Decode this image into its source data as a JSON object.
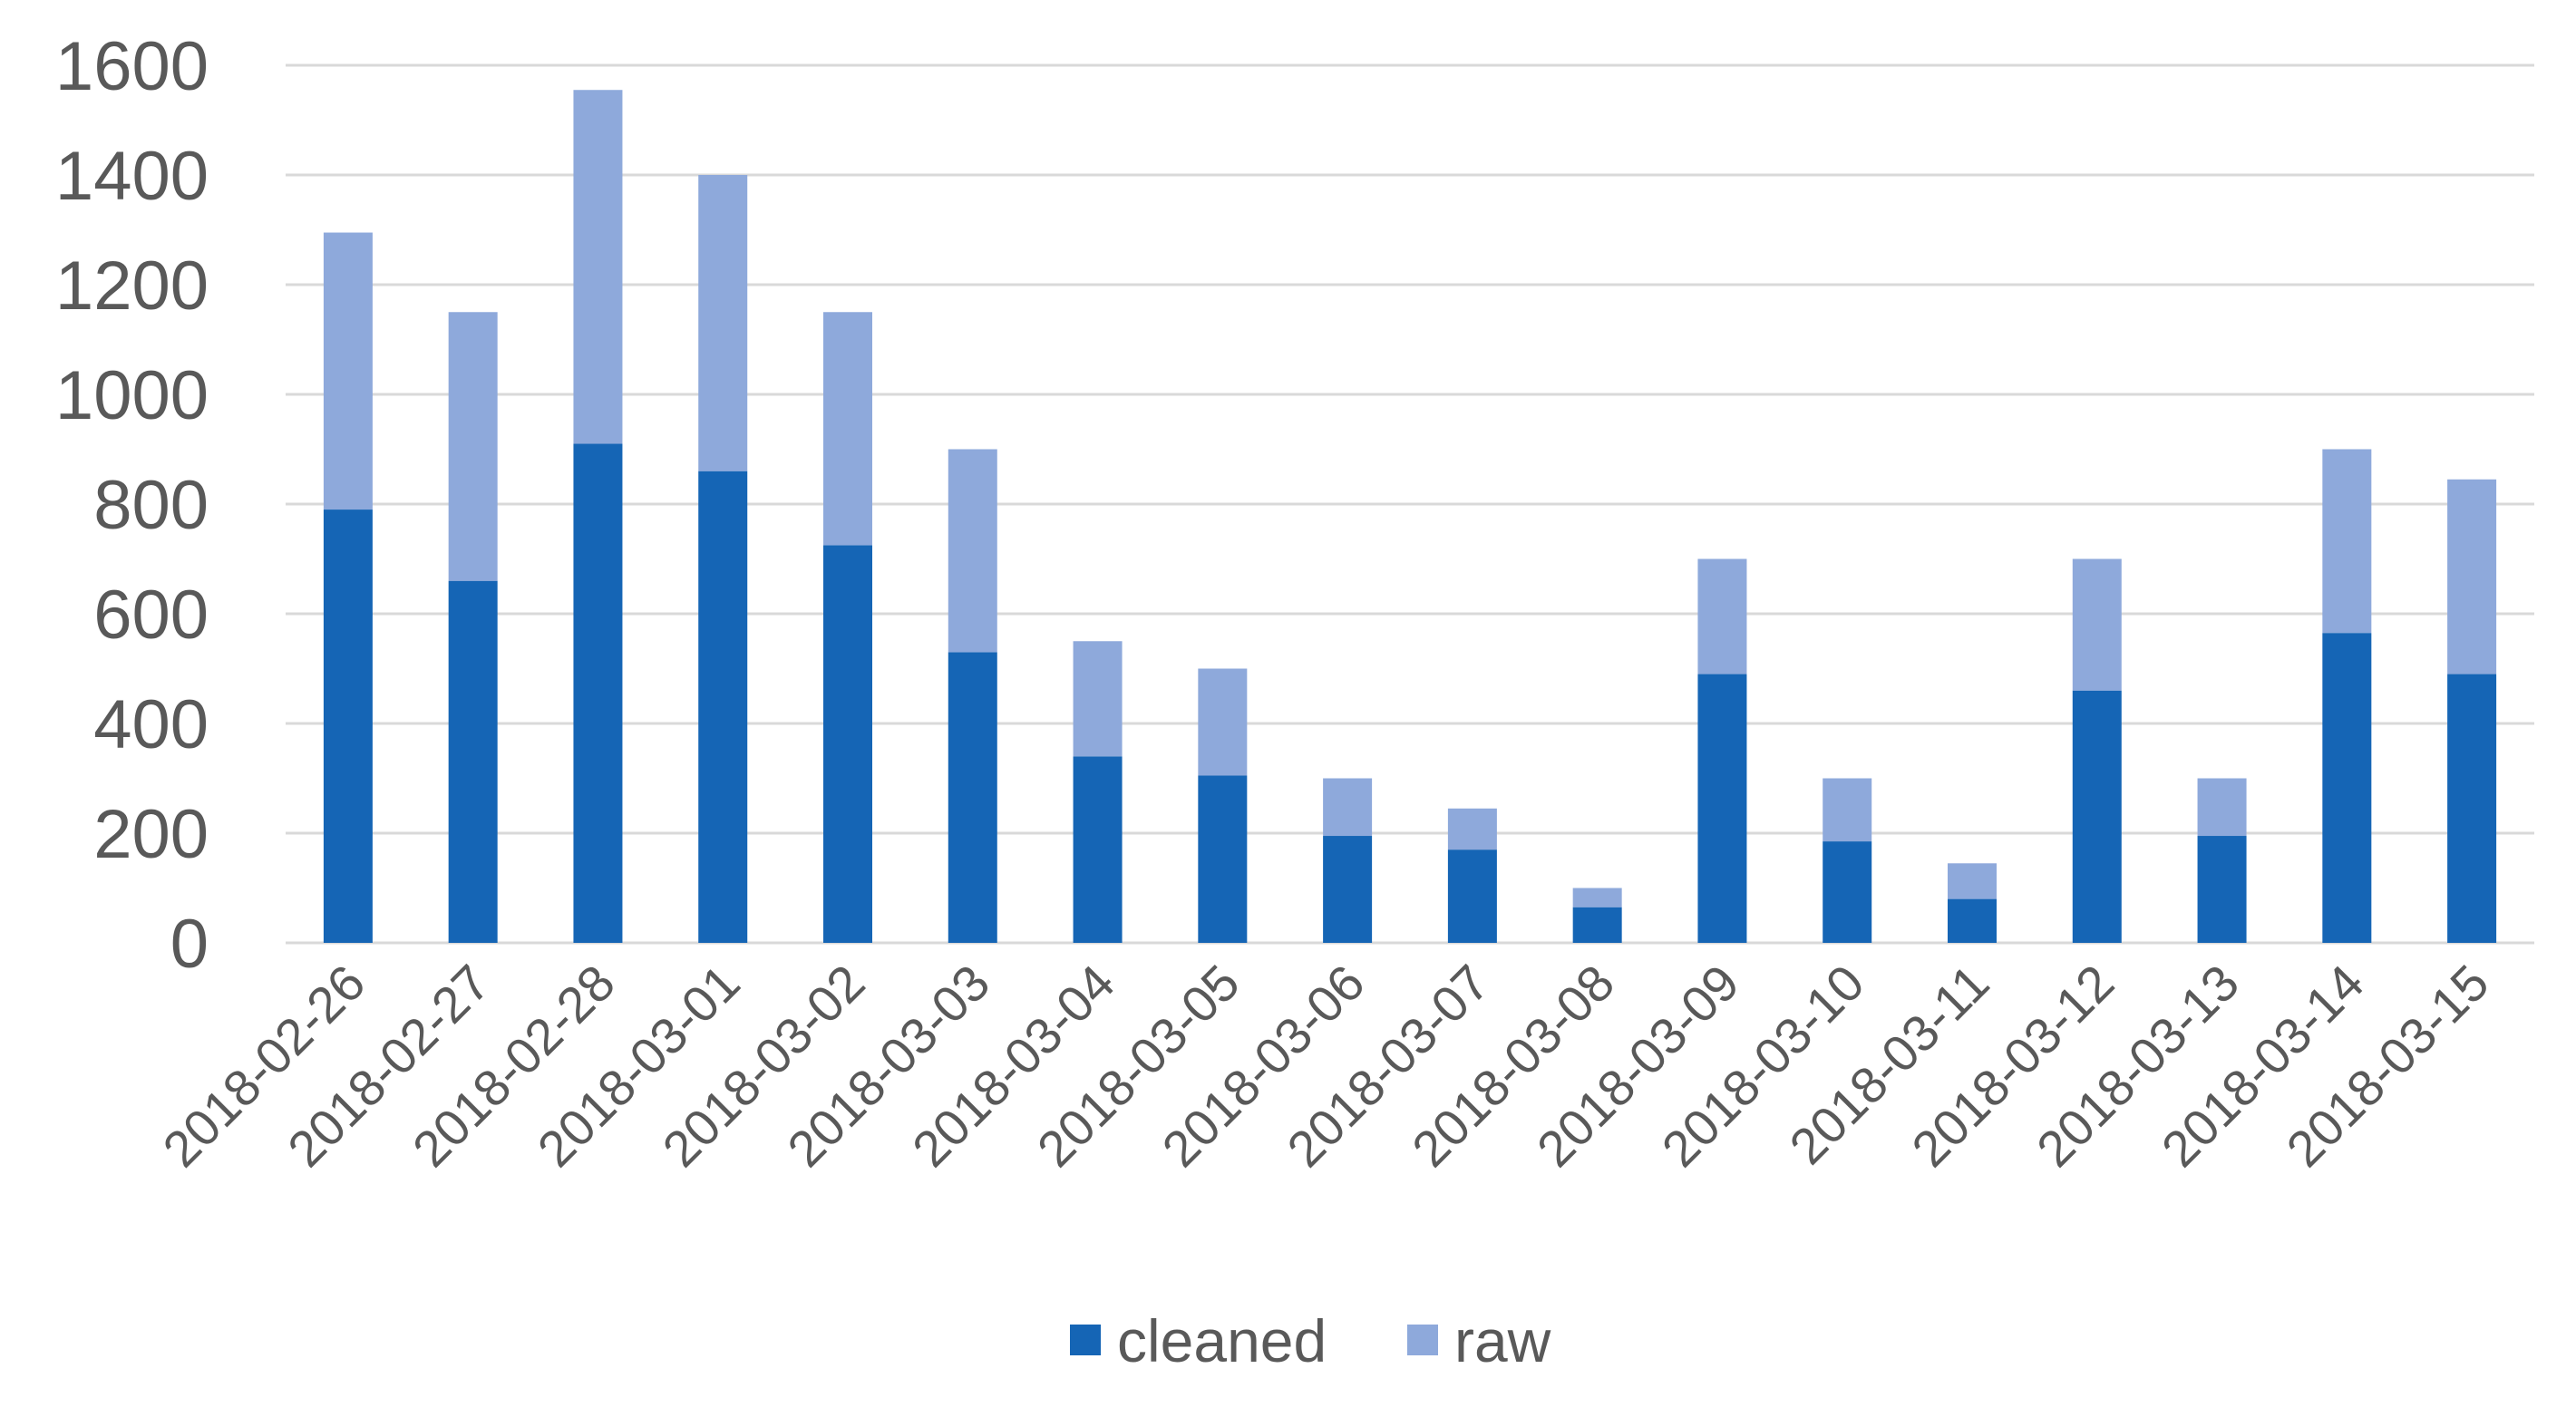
{
  "chart_data": {
    "type": "bar",
    "stacked": true,
    "title": "",
    "xlabel": "",
    "ylabel": "",
    "ylim": [
      0,
      1600
    ],
    "yticks": [
      "0",
      "200",
      "400",
      "600",
      "800",
      "1000",
      "1200",
      "1400",
      "1600"
    ],
    "grid": true,
    "legend_position": "bottom",
    "categories": [
      "2018-02-26",
      "2018-02-27",
      "2018-02-28",
      "2018-03-01",
      "2018-03-02",
      "2018-03-03",
      "2018-03-04",
      "2018-03-05",
      "2018-03-06",
      "2018-03-07",
      "2018-03-08",
      "2018-03-09",
      "2018-03-10",
      "2018-03-11",
      "2018-03-12",
      "2018-03-13",
      "2018-03-14",
      "2018-03-15"
    ],
    "series": [
      {
        "name": "cleaned",
        "color": "#1565b5",
        "values": [
          790,
          660,
          910,
          860,
          725,
          530,
          340,
          305,
          195,
          170,
          65,
          490,
          185,
          80,
          460,
          195,
          565,
          490
        ]
      },
      {
        "name": "raw",
        "color": "#8ea9db",
        "values": [
          505,
          490,
          645,
          540,
          425,
          370,
          210,
          195,
          105,
          75,
          35,
          210,
          115,
          65,
          240,
          105,
          335,
          355
        ]
      }
    ]
  }
}
